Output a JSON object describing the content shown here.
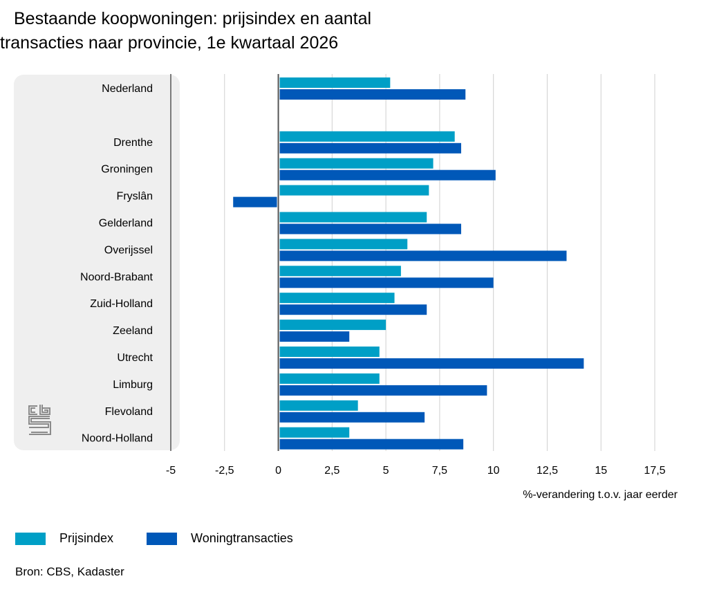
{
  "title": {
    "line1": "Bestaande koopwoningen: prijsindex en aantal",
    "line2": "transacties naar provincie, 1e kwartaal 2026"
  },
  "chart_data": {
    "type": "bar",
    "orientation": "horizontal",
    "title": "Bestaande koopwoningen: prijsindex en aantal transacties naar provincie, 1e kwartaal 2026",
    "categories": [
      "Nederland",
      "",
      "Drenthe",
      "Groningen",
      "Fryslân",
      "Gelderland",
      "Overijssel",
      "Noord-Brabant",
      "Zuid-Holland",
      "Zeeland",
      "Utrecht",
      "Limburg",
      "Flevoland",
      "Noord-Holland"
    ],
    "series": [
      {
        "name": "Prijsindex",
        "color": "#009fc6",
        "values": [
          5.2,
          null,
          8.2,
          7.2,
          7.0,
          6.9,
          6.0,
          5.7,
          5.4,
          5.0,
          4.7,
          4.7,
          3.7,
          3.3
        ]
      },
      {
        "name": "Woningtransacties",
        "color": "#0058b8",
        "values": [
          8.7,
          null,
          8.5,
          10.1,
          -2.1,
          8.5,
          13.4,
          10.0,
          6.9,
          3.3,
          14.2,
          9.7,
          6.8,
          8.6
        ]
      }
    ],
    "xlim": [
      -5,
      17.5
    ],
    "xticks": [
      -5,
      -2.5,
      0,
      2.5,
      5,
      7.5,
      10,
      12.5,
      15,
      17.5
    ],
    "xtick_labels": [
      "-5",
      "-2,5",
      "0",
      "2,5",
      "5",
      "7,5",
      "10",
      "12,5",
      "15",
      "17,5"
    ],
    "xlabel": "%-verandering t.o.v. jaar eerder",
    "ylabel": "",
    "grid": true,
    "legend_position": "bottom-left"
  },
  "legend": {
    "items": [
      {
        "label": "Prijsindex",
        "color": "#009fc6"
      },
      {
        "label": "Woningtransacties",
        "color": "#0058b8"
      }
    ]
  },
  "source": "Bron: CBS, Kadaster",
  "logo": {
    "text": "cbs",
    "icon": "cbs-logo-icon"
  }
}
